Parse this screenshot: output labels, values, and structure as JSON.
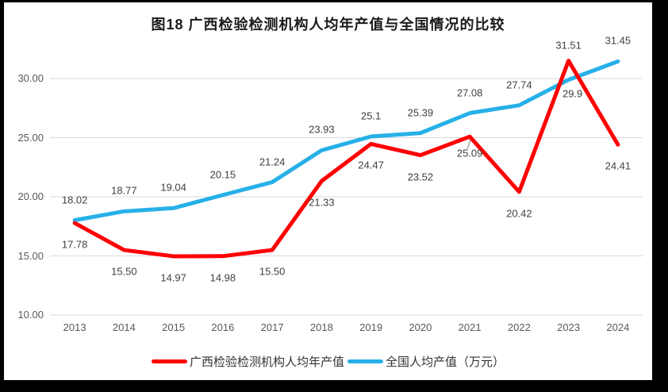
{
  "title": "图18 广西检验检测机构人均年产值与全国情况的比较",
  "chart_data": {
    "type": "line",
    "title": "图18 广西检验检测机构人均年产值与全国情况的比较",
    "categories": [
      "2013",
      "2014",
      "2015",
      "2016",
      "2017",
      "2018",
      "2019",
      "2020",
      "2021",
      "2022",
      "2023",
      "2024"
    ],
    "series": [
      {
        "name": "广西检验检测机构人均年产值",
        "color": "#FE0000",
        "values": [
          17.78,
          15.5,
          14.97,
          14.98,
          15.5,
          21.33,
          24.47,
          23.52,
          25.09,
          20.42,
          31.51,
          24.41
        ],
        "labels": [
          "17.78",
          "15.50",
          "14.97",
          "14.98",
          "15.50",
          "21.33",
          "24.47",
          "23.52",
          "25.09",
          "20.42",
          "31.51",
          "24.41"
        ]
      },
      {
        "name": "全国人均产值（万元）",
        "color": "#27B0E8",
        "values": [
          18.02,
          18.77,
          19.04,
          20.15,
          21.24,
          23.93,
          25.1,
          25.39,
          27.08,
          27.74,
          29.9,
          31.45
        ],
        "labels": [
          "18.02",
          "18.77",
          "19.04",
          "20.15",
          "21.24",
          "23.93",
          "25.1",
          "25.39",
          "27.08",
          "27.74",
          "29.9",
          "31.45"
        ]
      }
    ],
    "y_axis": {
      "min": 10,
      "max": 30,
      "step": 5,
      "ticks": [
        "10.00",
        "15.00",
        "20.00",
        "25.00",
        "30.00"
      ]
    },
    "xlabel": "",
    "ylabel": "",
    "grid": true,
    "legend_position": "bottom",
    "colors": {
      "grid": "#D9D9D9",
      "axis_text": "#595959",
      "label_text": "#404040",
      "leader": "#A6A6A6"
    }
  },
  "legend": {
    "items": [
      {
        "label": "广西检验检测机构人均年产值",
        "color": "#FE0000"
      },
      {
        "label": "全国人均产值（万元）",
        "color": "#27B0E8"
      }
    ]
  }
}
